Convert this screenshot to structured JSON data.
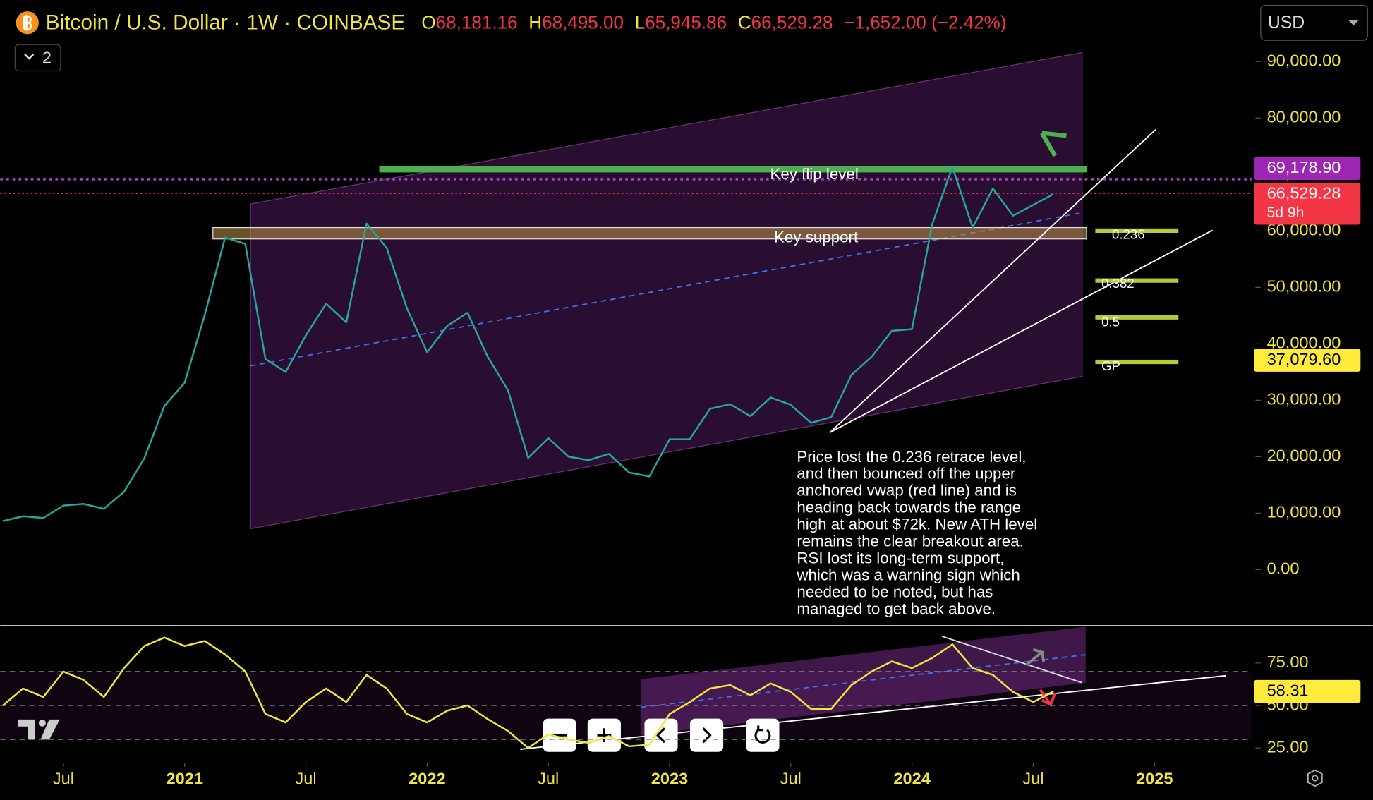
{
  "header": {
    "symbol": "Bitcoin / U.S. Dollar · 1W · COINBASE",
    "open_key": "O",
    "open": "68,181.16",
    "high_key": "H",
    "high": "68,495.00",
    "low_key": "L",
    "low": "65,945.86",
    "close_key": "C",
    "close": "66,529.28",
    "change": "−1,652.00 (−2.42%)",
    "currency": "USD",
    "indicators_count": "2"
  },
  "annotations": {
    "key_flip": "Key flip level",
    "key_support": "Key support",
    "fib_labels": [
      "0.236",
      "0.382",
      "0.5",
      "GP"
    ],
    "note_lines": [
      "Price lost the 0.236 retrace level,",
      "and then bounced off the upper",
      "anchored vwap (red line) and is",
      "heading back towards the range",
      "high at about $72k. New ATH level",
      "remains the clear breakout area.",
      "RSI lost its long-term support,",
      "which was a warning sign which",
      "needed to be noted, but has",
      "managed to get back above."
    ],
    "countdown": "5d 9h"
  },
  "chart_data": [
    {
      "type": "line",
      "x": [
        "2020-04",
        "2020-05",
        "2020-06",
        "2020-07",
        "2020-08",
        "2020-09",
        "2020-10",
        "2020-11",
        "2020-12",
        "2021-01",
        "2021-02",
        "2021-03",
        "2021-04",
        "2021-05",
        "2021-06",
        "2021-07",
        "2021-08",
        "2021-09",
        "2021-10",
        "2021-11",
        "2021-12",
        "2022-01",
        "2022-02",
        "2022-03",
        "2022-04",
        "2022-05",
        "2022-06",
        "2022-07",
        "2022-08",
        "2022-09",
        "2022-10",
        "2022-11",
        "2022-12",
        "2023-01",
        "2023-02",
        "2023-03",
        "2023-04",
        "2023-05",
        "2023-06",
        "2023-07",
        "2023-08",
        "2023-09",
        "2023-10",
        "2023-11",
        "2023-12",
        "2024-01",
        "2024-02",
        "2024-03",
        "2024-04",
        "2024-05",
        "2024-06",
        "2024-07",
        "2024-08"
      ],
      "series": [
        {
          "color": "#26a69a",
          "values": [
            8600,
            9450,
            9140,
            11350,
            11650,
            10780,
            13800,
            19700,
            29000,
            33100,
            45200,
            58800,
            57700,
            37300,
            35000,
            41500,
            47100,
            43800,
            61300,
            57000,
            46300,
            38500,
            43200,
            45500,
            37700,
            31800,
            19800,
            23300,
            20000,
            19400,
            20500,
            17200,
            16500,
            23100,
            23100,
            28500,
            29300,
            27200,
            30500,
            29200,
            26000,
            27000,
            34500,
            37700,
            42300,
            42600,
            61200,
            71300,
            60600,
            67500,
            62700,
            64600,
            66529.28
          ]
        }
      ],
      "xlim": [
        "2020-04",
        "2025-06"
      ],
      "xticks": [
        {
          "value": "2020-07",
          "label": "Jul"
        },
        {
          "value": "2021-01",
          "label": "2021"
        },
        {
          "value": "2021-07",
          "label": "Jul"
        },
        {
          "value": "2022-01",
          "label": "2022"
        },
        {
          "value": "2022-07",
          "label": "Jul"
        },
        {
          "value": "2023-01",
          "label": "2023"
        },
        {
          "value": "2023-07",
          "label": "Jul"
        },
        {
          "value": "2024-01",
          "label": "2024"
        },
        {
          "value": "2024-07",
          "label": "Jul"
        },
        {
          "value": "2025-01",
          "label": "2025"
        }
      ],
      "ylim": [
        -9800,
        100900
      ],
      "yticks": [
        {
          "value": 0,
          "label": "0.00"
        },
        {
          "value": 10000,
          "label": "10,000.00"
        },
        {
          "value": 20000,
          "label": "20,000.00"
        },
        {
          "value": 30000,
          "label": "30,000.00"
        },
        {
          "value": 40000,
          "label": "40,000.00"
        },
        {
          "value": 50000,
          "label": "50,000.00"
        },
        {
          "value": 60000,
          "label": "60,000.00"
        },
        {
          "value": 70000,
          "label": "70,000.00"
        },
        {
          "value": 80000,
          "label": "80,000.00"
        },
        {
          "value": 90000,
          "label": "90,000.00"
        }
      ],
      "grid": false,
      "price_labels": [
        {
          "value": 69178.9,
          "label": "69,178.90",
          "color": "#9c27b0",
          "text_color": "#ffffff"
        },
        {
          "value": 66529.28,
          "label": "66,529.28",
          "color": "#f23645",
          "text_color": "#ffffff"
        },
        {
          "value": 37079.6,
          "label": "37,079.60",
          "color": "#ffeb3b",
          "text_color": "#000000"
        }
      ]
    },
    {
      "type": "line",
      "x": [
        "2020-04",
        "2020-05",
        "2020-06",
        "2020-07",
        "2020-08",
        "2020-09",
        "2020-10",
        "2020-11",
        "2020-12",
        "2021-01",
        "2021-02",
        "2021-03",
        "2021-04",
        "2021-05",
        "2021-06",
        "2021-07",
        "2021-08",
        "2021-09",
        "2021-10",
        "2021-11",
        "2021-12",
        "2022-01",
        "2022-02",
        "2022-03",
        "2022-04",
        "2022-05",
        "2022-06",
        "2022-07",
        "2022-08",
        "2022-09",
        "2022-10",
        "2022-11",
        "2022-12",
        "2023-01",
        "2023-02",
        "2023-03",
        "2023-04",
        "2023-05",
        "2023-06",
        "2023-07",
        "2023-08",
        "2023-09",
        "2023-10",
        "2023-11",
        "2023-12",
        "2024-01",
        "2024-02",
        "2024-03",
        "2024-04",
        "2024-05",
        "2024-06",
        "2024-07",
        "2024-08"
      ],
      "series": [
        {
          "color": "#f0e442",
          "values": [
            50,
            60,
            55,
            70,
            65,
            55,
            72,
            85,
            90,
            85,
            88,
            80,
            70,
            45,
            40,
            52,
            60,
            52,
            68,
            60,
            45,
            40,
            47,
            50,
            42,
            35,
            25,
            33,
            30,
            28,
            32,
            26,
            27,
            45,
            52,
            60,
            62,
            56,
            63,
            58,
            48,
            48,
            62,
            70,
            76,
            72,
            78,
            86,
            72,
            68,
            58,
            52,
            58.31
          ]
        }
      ],
      "xlim": [
        "2020-04",
        "2025-06"
      ],
      "ylim": [
        16,
        96.4
      ],
      "yticks": [
        {
          "value": 25,
          "label": "25.00"
        },
        {
          "value": 50,
          "label": "50.00"
        },
        {
          "value": 75,
          "label": "75.00"
        }
      ],
      "guide_lines": [
        70,
        50,
        30
      ],
      "price_labels": [
        {
          "value": 58.31,
          "label": "58.31",
          "color": "#ffeb3b",
          "text_color": "#000000"
        }
      ]
    }
  ]
}
